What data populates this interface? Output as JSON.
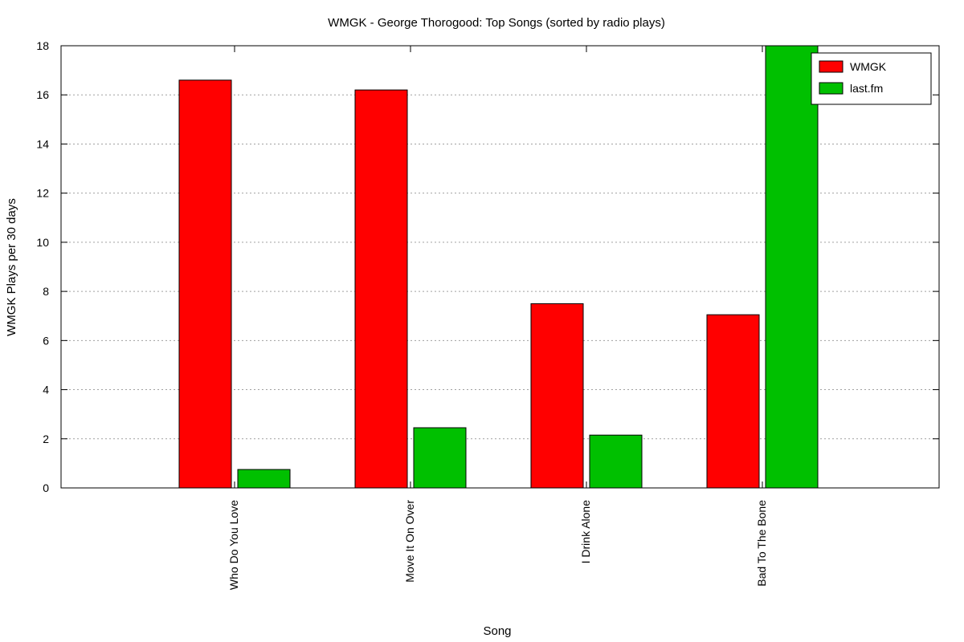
{
  "chart_data": {
    "type": "bar",
    "title": "WMGK - George Thorogood: Top Songs (sorted by radio plays)",
    "xlabel": "Song",
    "ylabel": "WMGK Plays per 30 days",
    "categories": [
      "Who Do You Love",
      "Move It On Over",
      "I Drink Alone",
      "Bad To The Bone"
    ],
    "series": [
      {
        "name": "WMGK",
        "color": "#ff0000",
        "values": [
          16.6,
          16.2,
          7.5,
          7.05
        ]
      },
      {
        "name": "last.fm",
        "color": "#00c000",
        "values": [
          0.75,
          2.45,
          2.15,
          18.0
        ]
      }
    ],
    "ylim": [
      0,
      18
    ],
    "yticks": [
      "0",
      "2",
      "4",
      "6",
      "8",
      "10",
      "12",
      "14",
      "16",
      "18"
    ],
    "grid": "horizontal",
    "legend_position": "top-right"
  }
}
